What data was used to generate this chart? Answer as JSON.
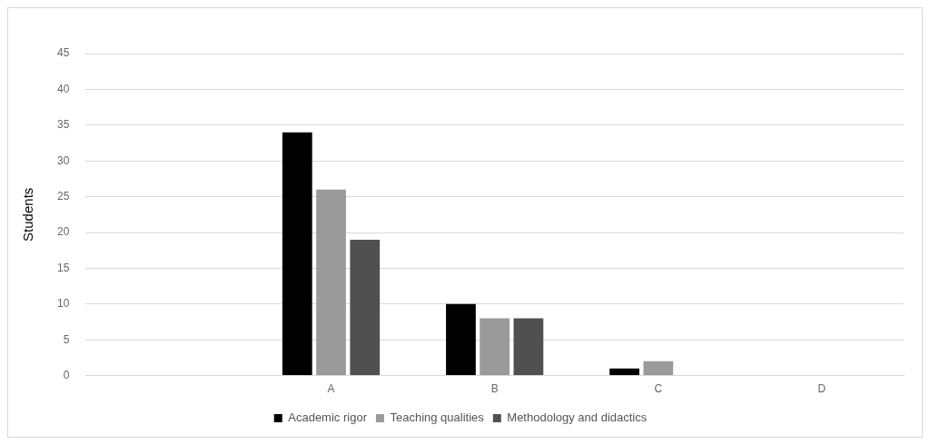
{
  "chart_data": {
    "type": "bar",
    "ylabel": "Students",
    "categories": [
      null,
      "A",
      "B",
      "C",
      "D"
    ],
    "series": [
      {
        "name": "Academic rigor",
        "color": "#000000",
        "values": [
          0,
          34,
          10,
          1,
          0
        ]
      },
      {
        "name": "Teaching qualities",
        "color": "#9a9a9a",
        "values": [
          0,
          26,
          8,
          2,
          0
        ]
      },
      {
        "name": "Methodology and didactics",
        "color": "#505050",
        "values": [
          0,
          19,
          8,
          0,
          0
        ]
      }
    ],
    "ylim": [
      0,
      45
    ],
    "yticks": [
      0,
      5,
      10,
      15,
      20,
      25,
      30,
      35,
      40,
      45
    ],
    "grid": "y",
    "legend": "bottom"
  }
}
